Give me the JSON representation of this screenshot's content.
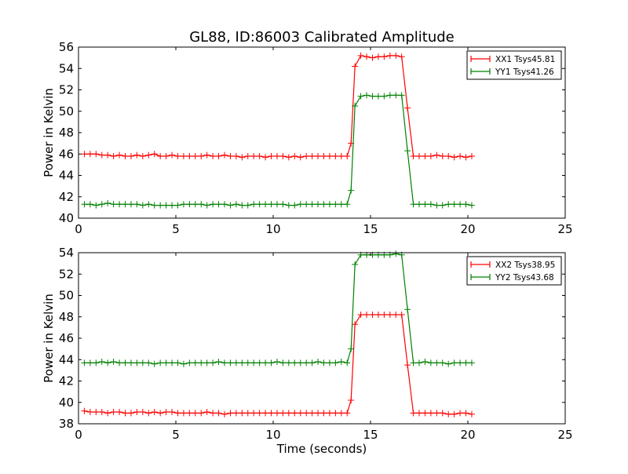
{
  "title": "GL88, ID:86003 Calibrated Amplitude",
  "chart_data": [
    {
      "type": "line",
      "title": "GL88, ID:86003 Calibrated Amplitude",
      "xlabel": "",
      "ylabel": "Power in Kelvin",
      "xlim": [
        0,
        25
      ],
      "ylim": [
        40,
        56
      ],
      "xticks": [
        0,
        5,
        10,
        15,
        20,
        25
      ],
      "yticks": [
        40,
        42,
        44,
        46,
        48,
        50,
        52,
        54,
        56
      ],
      "grid": false,
      "legend": "top-right",
      "series": [
        {
          "name": "XX1 Tsys45.81",
          "color": "#ff0000",
          "x": [
            0.3,
            0.6,
            0.9,
            1.2,
            1.5,
            1.8,
            2.1,
            2.4,
            2.7,
            3.0,
            3.3,
            3.6,
            3.9,
            4.2,
            4.5,
            4.8,
            5.1,
            5.4,
            5.7,
            6.0,
            6.3,
            6.6,
            6.9,
            7.2,
            7.5,
            7.8,
            8.1,
            8.4,
            8.7,
            9.0,
            9.3,
            9.6,
            9.9,
            10.2,
            10.5,
            10.8,
            11.1,
            11.4,
            11.7,
            12.0,
            12.3,
            12.6,
            12.9,
            13.2,
            13.5,
            13.8,
            14.0,
            14.2,
            14.5,
            14.8,
            15.1,
            15.4,
            15.7,
            16.0,
            16.3,
            16.6,
            16.9,
            17.2,
            17.5,
            17.8,
            18.1,
            18.4,
            18.7,
            19.0,
            19.3,
            19.6,
            19.9,
            20.2
          ],
          "y": [
            46.0,
            46.0,
            46.0,
            45.9,
            45.9,
            45.8,
            45.9,
            45.8,
            45.8,
            45.9,
            45.8,
            45.9,
            46.0,
            45.8,
            45.8,
            45.9,
            45.8,
            45.8,
            45.8,
            45.8,
            45.8,
            45.9,
            45.8,
            45.8,
            45.9,
            45.8,
            45.8,
            45.7,
            45.8,
            45.8,
            45.8,
            45.7,
            45.8,
            45.8,
            45.8,
            45.7,
            45.8,
            45.7,
            45.8,
            45.8,
            45.8,
            45.8,
            45.8,
            45.8,
            45.8,
            45.8,
            47.0,
            54.2,
            55.2,
            55.1,
            55.0,
            55.1,
            55.1,
            55.2,
            55.2,
            55.1,
            50.3,
            45.8,
            45.8,
            45.8,
            45.8,
            45.9,
            45.8,
            45.8,
            45.7,
            45.8,
            45.7,
            45.8
          ]
        },
        {
          "name": "YY1 Tsys41.26",
          "color": "#008000",
          "x": [
            0.3,
            0.6,
            0.9,
            1.2,
            1.5,
            1.8,
            2.1,
            2.4,
            2.7,
            3.0,
            3.3,
            3.6,
            3.9,
            4.2,
            4.5,
            4.8,
            5.1,
            5.4,
            5.7,
            6.0,
            6.3,
            6.6,
            6.9,
            7.2,
            7.5,
            7.8,
            8.1,
            8.4,
            8.7,
            9.0,
            9.3,
            9.6,
            9.9,
            10.2,
            10.5,
            10.8,
            11.1,
            11.4,
            11.7,
            12.0,
            12.3,
            12.6,
            12.9,
            13.2,
            13.5,
            13.8,
            14.0,
            14.2,
            14.5,
            14.8,
            15.1,
            15.4,
            15.7,
            16.0,
            16.3,
            16.6,
            16.9,
            17.2,
            17.5,
            17.8,
            18.1,
            18.4,
            18.7,
            19.0,
            19.3,
            19.6,
            19.9,
            20.2
          ],
          "y": [
            41.3,
            41.3,
            41.2,
            41.3,
            41.4,
            41.3,
            41.3,
            41.3,
            41.3,
            41.3,
            41.2,
            41.3,
            41.2,
            41.2,
            41.2,
            41.2,
            41.2,
            41.3,
            41.3,
            41.3,
            41.3,
            41.2,
            41.3,
            41.3,
            41.3,
            41.2,
            41.3,
            41.2,
            41.2,
            41.3,
            41.3,
            41.3,
            41.3,
            41.3,
            41.3,
            41.2,
            41.2,
            41.3,
            41.3,
            41.3,
            41.3,
            41.3,
            41.3,
            41.3,
            41.3,
            41.3,
            42.6,
            50.5,
            51.4,
            51.5,
            51.4,
            51.4,
            51.4,
            51.5,
            51.5,
            51.5,
            46.3,
            41.3,
            41.3,
            41.3,
            41.3,
            41.2,
            41.2,
            41.3,
            41.3,
            41.3,
            41.3,
            41.2
          ]
        }
      ]
    },
    {
      "type": "line",
      "title": "",
      "xlabel": "Time (seconds)",
      "ylabel": "Power in Kelvin",
      "xlim": [
        0,
        25
      ],
      "ylim": [
        38,
        54
      ],
      "xticks": [
        0,
        5,
        10,
        15,
        20,
        25
      ],
      "yticks": [
        38,
        40,
        42,
        44,
        46,
        48,
        50,
        52,
        54
      ],
      "grid": false,
      "legend": "top-right",
      "series": [
        {
          "name": "XX2 Tsys38.95",
          "color": "#ff0000",
          "x": [
            0.3,
            0.6,
            0.9,
            1.2,
            1.5,
            1.8,
            2.1,
            2.4,
            2.7,
            3.0,
            3.3,
            3.6,
            3.9,
            4.2,
            4.5,
            4.8,
            5.1,
            5.4,
            5.7,
            6.0,
            6.3,
            6.6,
            6.9,
            7.2,
            7.5,
            7.8,
            8.1,
            8.4,
            8.7,
            9.0,
            9.3,
            9.6,
            9.9,
            10.2,
            10.5,
            10.8,
            11.1,
            11.4,
            11.7,
            12.0,
            12.3,
            12.6,
            12.9,
            13.2,
            13.5,
            13.8,
            14.0,
            14.2,
            14.5,
            14.8,
            15.1,
            15.4,
            15.7,
            16.0,
            16.3,
            16.6,
            16.9,
            17.2,
            17.5,
            17.8,
            18.1,
            18.4,
            18.7,
            19.0,
            19.3,
            19.6,
            19.9,
            20.2
          ],
          "y": [
            39.2,
            39.1,
            39.1,
            39.1,
            39.0,
            39.1,
            39.1,
            39.0,
            39.0,
            39.1,
            39.1,
            39.0,
            39.1,
            39.0,
            39.1,
            39.1,
            39.0,
            39.0,
            39.0,
            39.0,
            39.0,
            39.1,
            39.0,
            39.0,
            38.9,
            39.0,
            39.0,
            39.0,
            39.0,
            39.0,
            39.0,
            39.0,
            39.0,
            39.0,
            39.0,
            39.0,
            39.0,
            39.0,
            39.0,
            39.0,
            39.0,
            39.0,
            39.0,
            39.0,
            39.0,
            39.0,
            40.2,
            47.3,
            48.2,
            48.2,
            48.2,
            48.2,
            48.2,
            48.2,
            48.2,
            48.2,
            43.5,
            39.0,
            39.0,
            39.0,
            39.0,
            39.0,
            39.0,
            38.9,
            38.9,
            39.0,
            39.0,
            38.9
          ]
        },
        {
          "name": "YY2 Tsys43.68",
          "color": "#008000",
          "x": [
            0.3,
            0.6,
            0.9,
            1.2,
            1.5,
            1.8,
            2.1,
            2.4,
            2.7,
            3.0,
            3.3,
            3.6,
            3.9,
            4.2,
            4.5,
            4.8,
            5.1,
            5.4,
            5.7,
            6.0,
            6.3,
            6.6,
            6.9,
            7.2,
            7.5,
            7.8,
            8.1,
            8.4,
            8.7,
            9.0,
            9.3,
            9.6,
            9.9,
            10.2,
            10.5,
            10.8,
            11.1,
            11.4,
            11.7,
            12.0,
            12.3,
            12.6,
            12.9,
            13.2,
            13.5,
            13.8,
            14.0,
            14.2,
            14.5,
            14.8,
            15.1,
            15.4,
            15.7,
            16.0,
            16.3,
            16.6,
            16.9,
            17.2,
            17.5,
            17.8,
            18.1,
            18.4,
            18.7,
            19.0,
            19.3,
            19.6,
            19.9,
            20.2
          ],
          "y": [
            43.7,
            43.7,
            43.7,
            43.8,
            43.7,
            43.8,
            43.7,
            43.7,
            43.7,
            43.7,
            43.7,
            43.7,
            43.6,
            43.7,
            43.7,
            43.7,
            43.7,
            43.6,
            43.7,
            43.7,
            43.7,
            43.7,
            43.7,
            43.8,
            43.7,
            43.7,
            43.7,
            43.7,
            43.7,
            43.7,
            43.7,
            43.7,
            43.7,
            43.8,
            43.7,
            43.7,
            43.7,
            43.7,
            43.7,
            43.7,
            43.8,
            43.7,
            43.7,
            43.7,
            43.8,
            43.7,
            45.0,
            52.9,
            53.8,
            53.8,
            53.8,
            53.8,
            53.8,
            53.8,
            53.9,
            53.8,
            48.7,
            43.7,
            43.7,
            43.8,
            43.7,
            43.7,
            43.7,
            43.6,
            43.7,
            43.7,
            43.7,
            43.7
          ]
        }
      ]
    }
  ]
}
